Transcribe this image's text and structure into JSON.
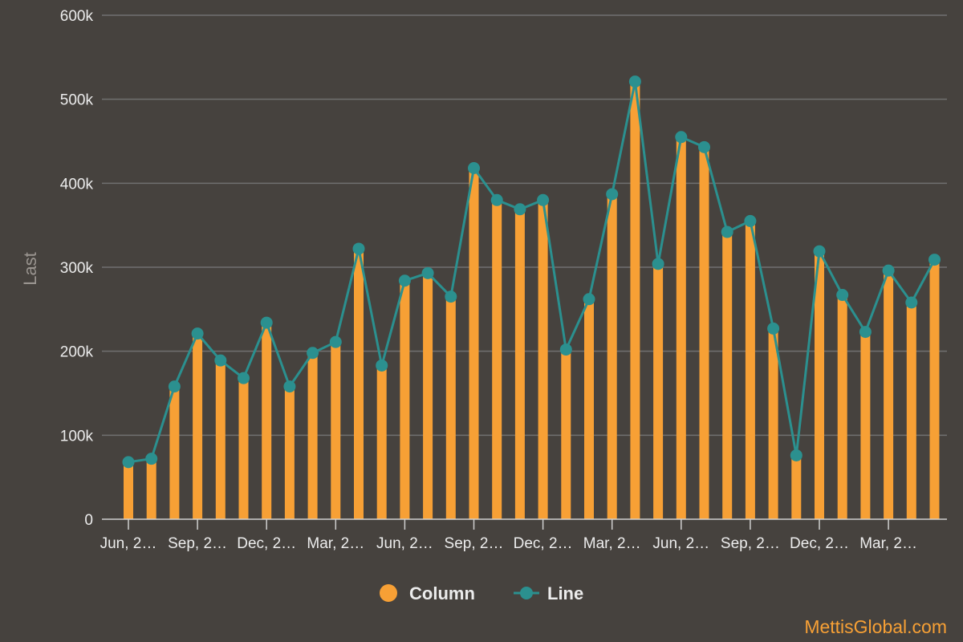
{
  "chart_data": {
    "type": "bar",
    "ylabel": "Last",
    "ylim": [
      0,
      600000
    ],
    "y_ticks": [
      "0",
      "100k",
      "200k",
      "300k",
      "400k",
      "500k",
      "600k"
    ],
    "x_tick_labels": [
      "Jun, 2…",
      "Sep, 2…",
      "Dec, 2…",
      "Mar, 2…",
      "Jun, 2…",
      "Sep, 2…",
      "Dec, 2…",
      "Mar, 2…",
      "Jun, 2…",
      "Sep, 2…",
      "Dec, 2…",
      "Mar, 2…"
    ],
    "grid": true,
    "legend_position": "bottom-center",
    "series": [
      {
        "name": "Column",
        "type": "bar",
        "color": "#f7a035",
        "values": [
          68000,
          72000,
          158000,
          221000,
          189000,
          168000,
          234000,
          158000,
          198000,
          211000,
          322000,
          183000,
          284000,
          293000,
          265000,
          418000,
          380000,
          369000,
          380000,
          202000,
          262000,
          387000,
          521000,
          304000,
          455000,
          443000,
          342000,
          355000,
          227000,
          76000,
          319000,
          267000,
          223000,
          296000,
          258000,
          309000
        ]
      },
      {
        "name": "Line",
        "type": "line",
        "color": "#2b908f",
        "values": [
          68000,
          72000,
          158000,
          221000,
          189000,
          168000,
          234000,
          158000,
          198000,
          211000,
          322000,
          183000,
          284000,
          293000,
          265000,
          418000,
          380000,
          369000,
          380000,
          202000,
          262000,
          387000,
          521000,
          304000,
          455000,
          443000,
          342000,
          355000,
          227000,
          76000,
          319000,
          267000,
          223000,
          296000,
          258000,
          309000
        ]
      }
    ]
  },
  "legend": {
    "column_label": "Column",
    "line_label": "Line"
  },
  "credit": "MettisGlobal.com",
  "colors": {
    "background": "#46423e",
    "grid": "#707070",
    "column": "#f7a035",
    "line": "#2b908f",
    "text": "#ececec"
  }
}
